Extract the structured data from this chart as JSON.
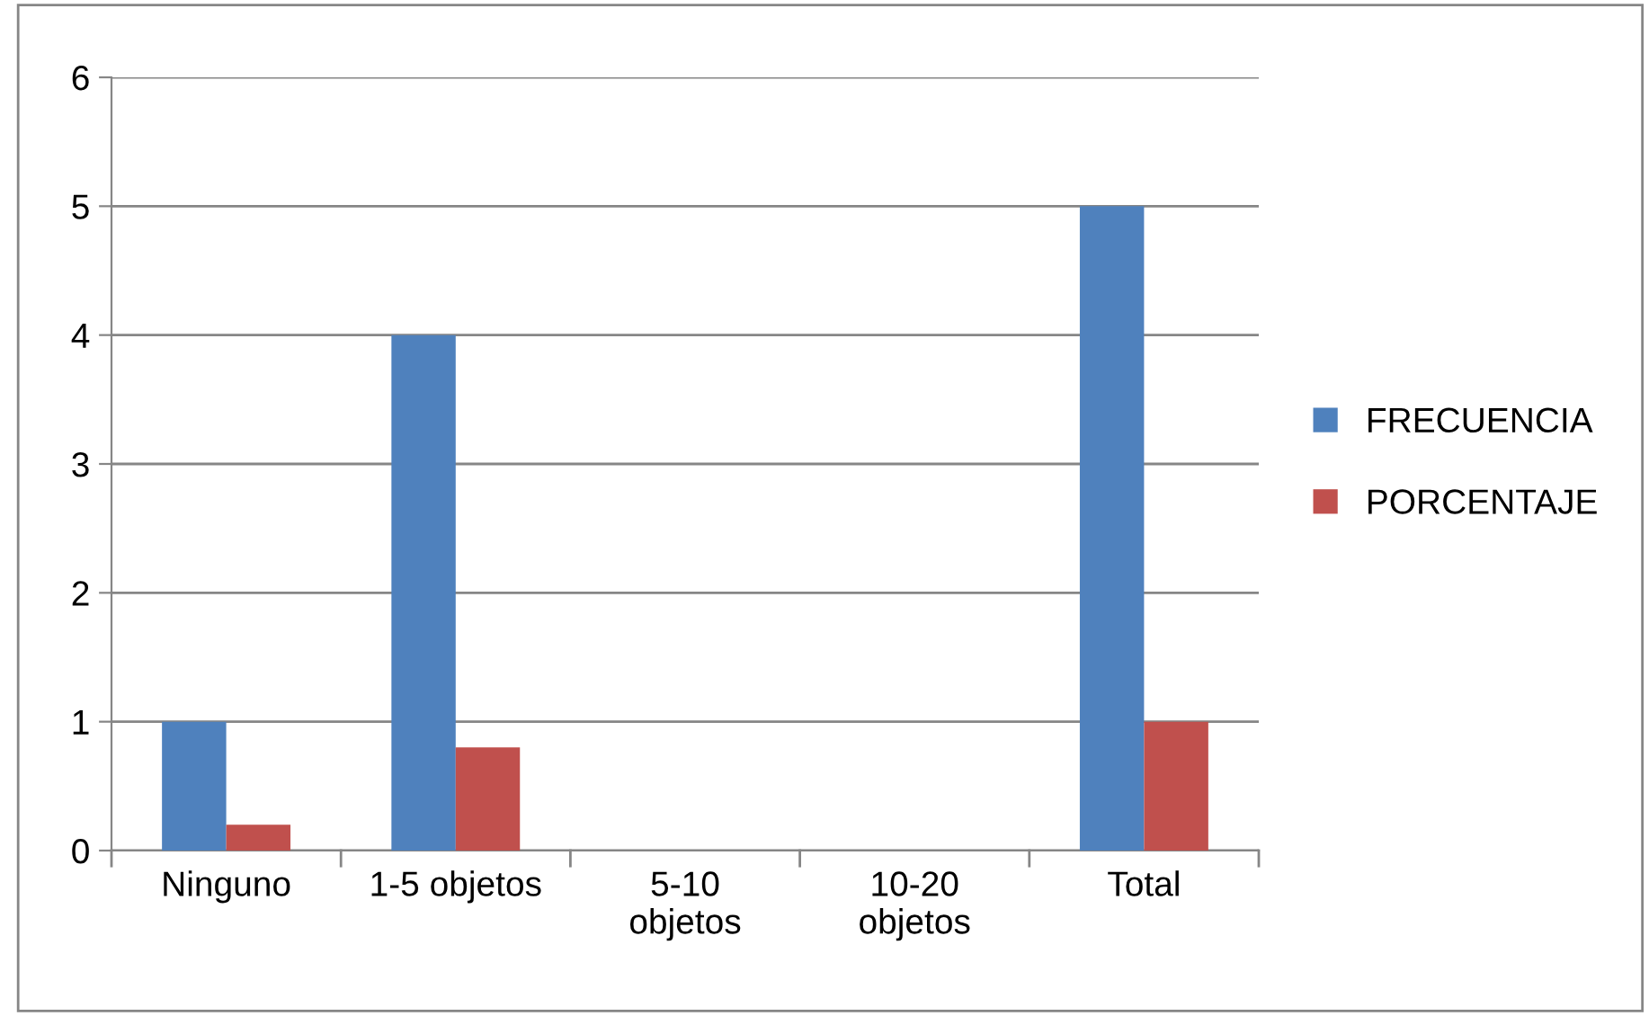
{
  "chart_data": {
    "type": "bar",
    "categories": [
      "Ninguno",
      "1-5 objetos",
      "5-10\nobjetos",
      "10-20\nobjetos",
      "Total"
    ],
    "series": [
      {
        "name": "FRECUENCIA",
        "color": "#4f81bd",
        "values": [
          1,
          4,
          0,
          0,
          5
        ]
      },
      {
        "name": "PORCENTAJE",
        "color": "#c0504d",
        "values": [
          0.2,
          0.8,
          0,
          0,
          1
        ]
      }
    ],
    "ylim": [
      0,
      6
    ],
    "yticks": [
      0,
      1,
      2,
      3,
      4,
      5,
      6
    ],
    "grid": "y",
    "legend": "right"
  }
}
